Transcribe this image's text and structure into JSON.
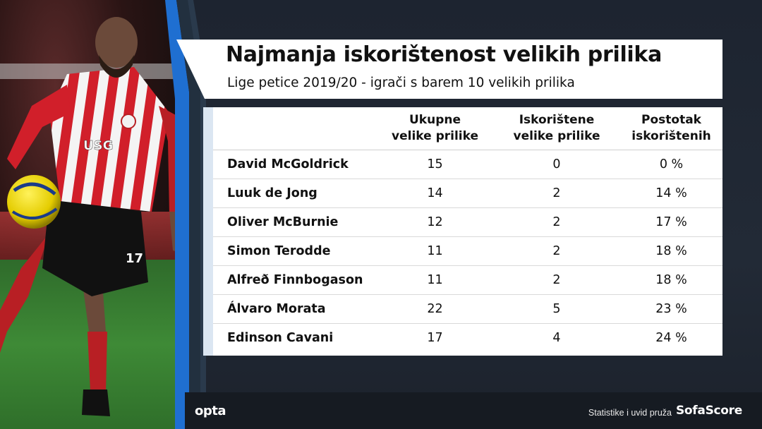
{
  "header": {
    "title": "Najmanja iskorištenost velikih prilika",
    "subtitle": "Lige petice 2019/20 - igrači s barem 10 velikih prilika"
  },
  "table": {
    "columns": [
      "",
      "Ukupne\nvelike prilike",
      "Iskorištene\nvelike prilike",
      "Postotak\niskorištenih"
    ],
    "rows": [
      [
        "David McGoldrick",
        "15",
        "0",
        "0 %"
      ],
      [
        "Luuk de Jong",
        "14",
        "2",
        "14 %"
      ],
      [
        "Oliver McBurnie",
        "12",
        "2",
        "17 %"
      ],
      [
        "Simon Terodde",
        "11",
        "2",
        "18 %"
      ],
      [
        "Alfreð Finnbogason",
        "11",
        "2",
        "18 %"
      ],
      [
        "Álvaro Morata",
        "22",
        "5",
        "23 %"
      ],
      [
        "Edinson Cavani",
        "17",
        "4",
        "24 %"
      ]
    ]
  },
  "photo": {
    "subject": "footballer in red-white striped kit controlling a yellow ball",
    "shirt_text": "USG",
    "shirt_number": "17"
  },
  "footer": {
    "left_logo": "opta",
    "credit": "Statistike i uvid pruža",
    "brand": "SofaScore"
  },
  "colors": {
    "background": "#1e2530",
    "accent_blue": "#1f6fd1",
    "card": "#ffffff",
    "text": "#111111"
  }
}
